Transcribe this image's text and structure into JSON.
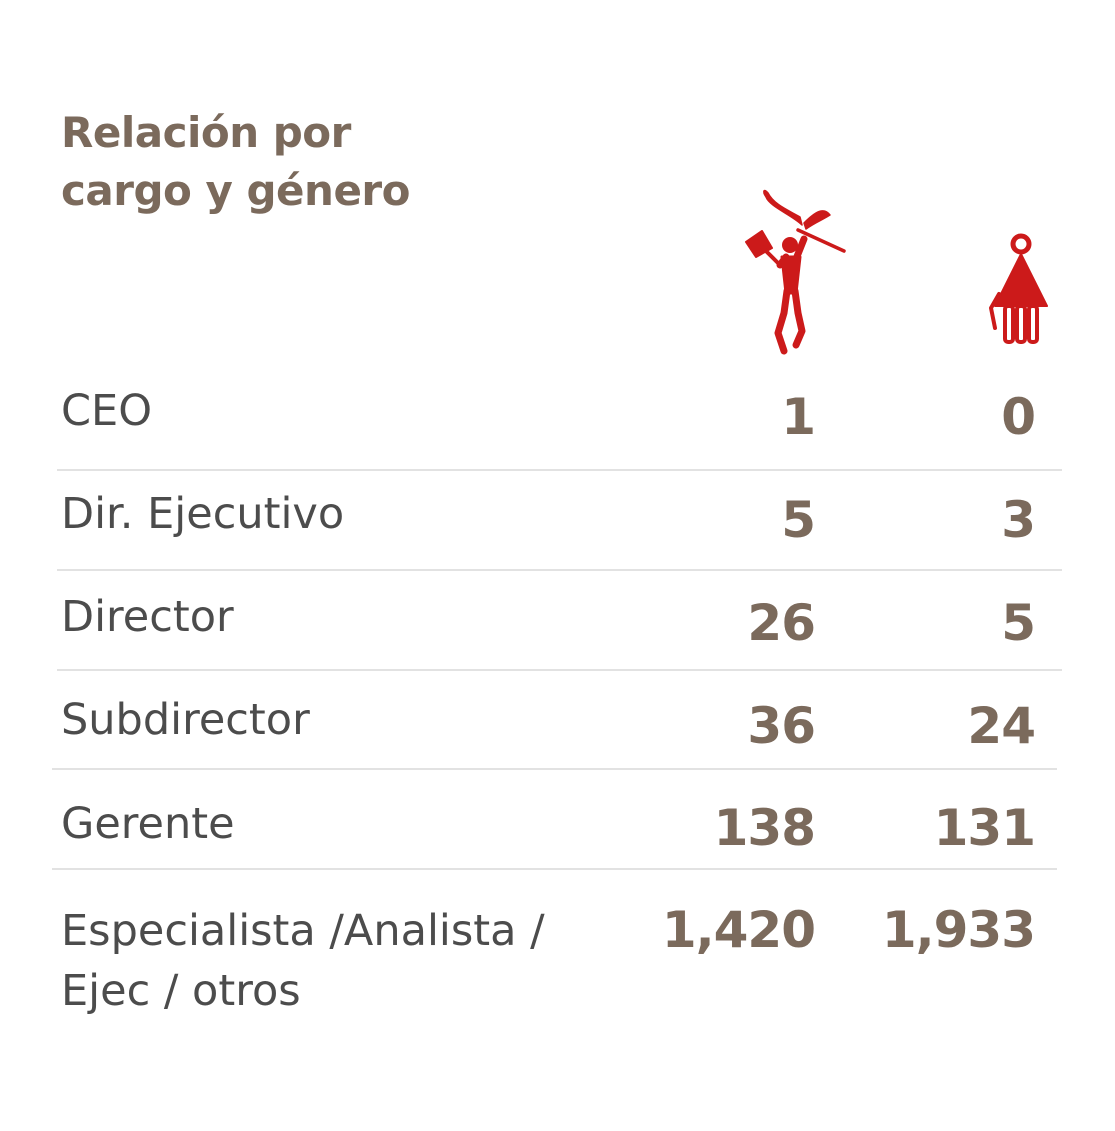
{
  "chart_data": {
    "type": "table",
    "title_lines": [
      "Relación por",
      "cargo y género"
    ],
    "columns": [
      {
        "icon": "male-figure-icon",
        "color": "#cc1a1a"
      },
      {
        "icon": "female-figure-icon",
        "color": "#cc1a1a"
      }
    ],
    "rows": [
      {
        "label_lines": [
          "CEO"
        ],
        "values": [
          "1",
          "0"
        ]
      },
      {
        "label_lines": [
          "Dir. Ejecutivo"
        ],
        "values": [
          "5",
          "3"
        ]
      },
      {
        "label_lines": [
          "Director"
        ],
        "values": [
          "26",
          "5"
        ]
      },
      {
        "label_lines": [
          "Subdirector"
        ],
        "values": [
          "36",
          "24"
        ]
      },
      {
        "label_lines": [
          "Gerente"
        ],
        "values": [
          "138",
          "131"
        ]
      },
      {
        "label_lines": [
          "Especialista /Analista /",
          "Ejec / otros"
        ],
        "values": [
          "1,420",
          "1,933"
        ]
      }
    ]
  },
  "colors": {
    "heading": "#7b6a5c",
    "label": "#4c4c4c",
    "icon": "#cc1a1a",
    "separator": "#e2e2e2"
  }
}
